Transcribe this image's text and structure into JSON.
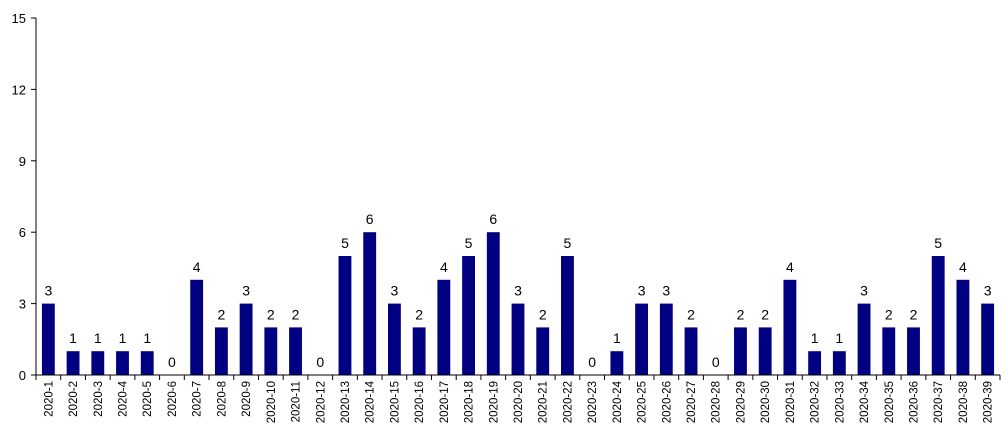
{
  "chart_data": {
    "type": "bar",
    "title": "",
    "xlabel": "",
    "ylabel": "",
    "ylim": [
      0,
      15
    ],
    "yticks": [
      0,
      3,
      6,
      9,
      12,
      15
    ],
    "grid": false,
    "bar_color": "#000080",
    "categories": [
      "2020-1",
      "2020-2",
      "2020-3",
      "2020-4",
      "2020-5",
      "2020-6",
      "2020-7",
      "2020-8",
      "2020-9",
      "2020-10",
      "2020-11",
      "2020-12",
      "2020-13",
      "2020-14",
      "2020-15",
      "2020-16",
      "2020-17",
      "2020-18",
      "2020-19",
      "2020-20",
      "2020-21",
      "2020-22",
      "2020-23",
      "2020-24",
      "2020-25",
      "2020-26",
      "2020-27",
      "2020-28",
      "2020-29",
      "2020-30",
      "2020-31",
      "2020-32",
      "2020-33",
      "2020-34",
      "2020-35",
      "2020-36",
      "2020-37",
      "2020-38",
      "2020-39"
    ],
    "values": [
      3,
      1,
      1,
      1,
      1,
      0,
      4,
      2,
      3,
      2,
      2,
      0,
      5,
      6,
      3,
      2,
      4,
      5,
      6,
      3,
      2,
      5,
      0,
      1,
      3,
      3,
      2,
      0,
      2,
      2,
      4,
      1,
      1,
      3,
      2,
      2,
      5,
      4,
      3
    ]
  }
}
